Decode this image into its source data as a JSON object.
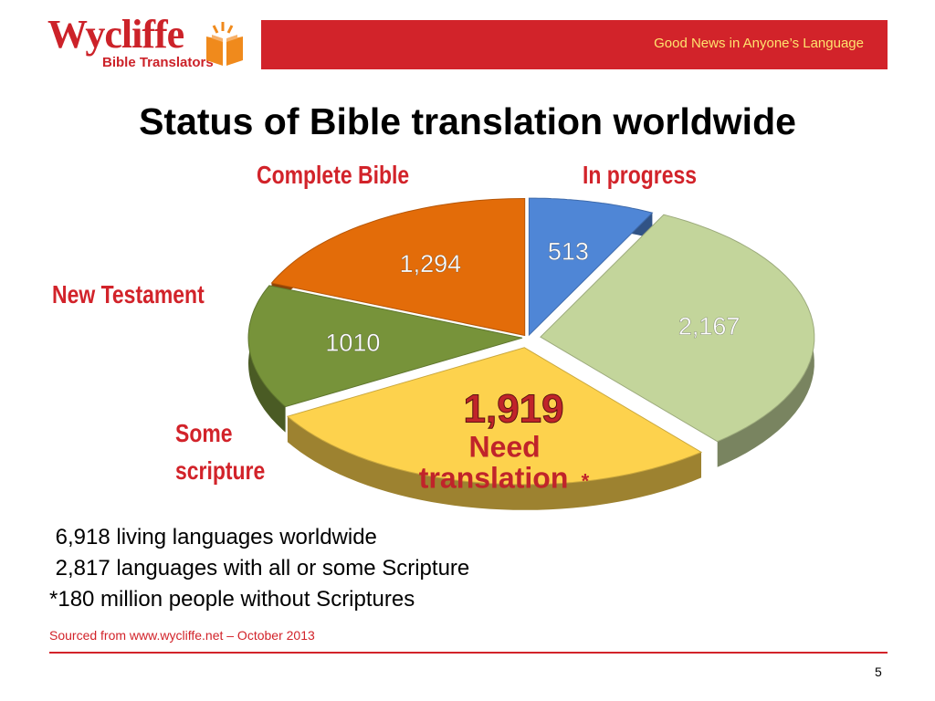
{
  "header": {
    "logo_word": "Wycliffe",
    "logo_sub": "Bible Translators",
    "tagline": "Good News in Anyone’s Language"
  },
  "chart_data": {
    "type": "pie",
    "title": "Status of Bible translation worldwide",
    "slices": [
      {
        "name": "Complete Bible",
        "value": 513,
        "label": "513",
        "color": "#4f86d6"
      },
      {
        "name": "In progress",
        "value": 2167,
        "label": "2,167",
        "color": "#c3d59b"
      },
      {
        "name": "Need translation*",
        "value": 1919,
        "label": "1,919",
        "label_word_1": "Need",
        "label_word_2": "translation",
        "label_mark": "*",
        "color": "#fdd24d"
      },
      {
        "name": "Some scripture",
        "value": 1010,
        "label": "1010",
        "color": "#77933a"
      },
      {
        "name": "New Testament",
        "value": 1294,
        "label": "1,294",
        "color": "#e36c09"
      }
    ],
    "category_labels": {
      "complete_bible": "Complete Bible",
      "in_progress": "In progress",
      "new_testament": "New Testament",
      "some_scripture_1": "Some",
      "some_scripture_2": "scripture"
    }
  },
  "notes": [
    " 6,918 living languages worldwide",
    " 2,817 languages with all or some Scripture",
    "*180 million people without Scriptures"
  ],
  "source": "Sourced from www.wycliffe.net – October 2013",
  "page_number": "5"
}
